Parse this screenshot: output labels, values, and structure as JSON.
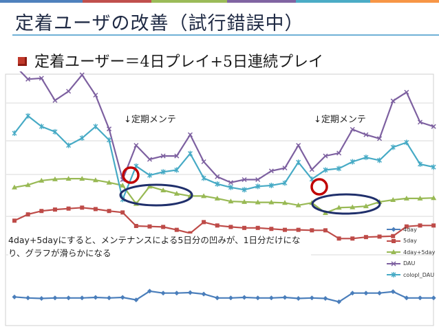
{
  "title": "定着ユーザの改善（試行錯誤中）",
  "subtitle": "定着ユーザー＝4日プレイ+5日連続プレイ",
  "annotations": {
    "maintenance_1": "↓定期メンテ",
    "maintenance_2": "↓定期メンテ"
  },
  "note": "4day+5dayにすると、メンテナンスによる5日分の凹みが、1日分だけになり、グラフが滑らかになる",
  "colors": {
    "accent_bar": [
      "#4f81bd",
      "#c0504d",
      "#9bbb59",
      "#8064a2",
      "#4bacc6",
      "#f79646"
    ],
    "rule": "#6fb0d6",
    "circle_red": "#c00000",
    "ellipse_navy": "#1f2f6b"
  },
  "chart_data": {
    "type": "line",
    "grid": true,
    "legend_position": "right",
    "x_count": 32,
    "series": [
      {
        "name": "4day",
        "color": "#4a7ebb",
        "marker": "diamond",
        "values": [
          1.8,
          1.6,
          1.5,
          1.6,
          1.6,
          1.6,
          1.7,
          1.6,
          1.7,
          1.2,
          3.0,
          2.6,
          2.6,
          2.7,
          2.4,
          1.6,
          1.6,
          1.7,
          1.6,
          1.6,
          1.7,
          1.5,
          1.6,
          1.5,
          0.8,
          2.6,
          2.6,
          2.6,
          2.9,
          1.6,
          1.6,
          1.6
        ]
      },
      {
        "name": "5day",
        "color": "#be4b48",
        "marker": "square",
        "values": [
          17.6,
          18.9,
          19.6,
          19.9,
          20.1,
          20.3,
          20.0,
          19.6,
          19.3,
          16.5,
          16.4,
          16.3,
          15.7,
          15.0,
          17.3,
          16.6,
          16.3,
          16.1,
          16.1,
          15.9,
          15.7,
          15.7,
          15.6,
          15.6,
          13.9,
          13.9,
          14.2,
          14.3,
          14.4,
          16.4,
          16.6,
          16.6
        ]
      },
      {
        "name": "4day+5day",
        "color": "#98b954",
        "marker": "triangle",
        "values": [
          24.5,
          25.0,
          25.9,
          26.2,
          26.3,
          26.3,
          26.0,
          25.5,
          24.9,
          21.1,
          24.7,
          23.9,
          23.2,
          22.7,
          22.7,
          22.2,
          21.6,
          21.5,
          21.4,
          21.4,
          21.3,
          20.8,
          21.3,
          19.2,
          20.3,
          20.4,
          20.6,
          21.5,
          21.9,
          22.2,
          22.2,
          22.3
        ]
      },
      {
        "name": "DAU",
        "color": "#7d60a0",
        "marker": "x",
        "values": [
          49.8,
          46.9,
          47.1,
          42.5,
          44.4,
          47.8,
          43.6,
          36.6,
          26.1,
          33.2,
          30.3,
          31.0,
          31.0,
          35.4,
          29.8,
          26.7,
          25.5,
          26.1,
          26.1,
          27.9,
          28.5,
          33.2,
          28.2,
          31.0,
          31.6,
          36.5,
          35.4,
          34.6,
          42.4,
          44.2,
          38.0,
          37.1
        ]
      },
      {
        "name": "colopl_DAU",
        "color": "#46aac5",
        "marker": "star",
        "values": [
          35.7,
          39.3,
          37.1,
          36.0,
          33.2,
          34.7,
          37.1,
          34.3,
          22.0,
          28.9,
          27.0,
          27.7,
          28.1,
          31.5,
          26.4,
          25.2,
          24.5,
          24.0,
          24.7,
          24.9,
          25.4,
          29.7,
          26.2,
          28.1,
          28.4,
          29.8,
          30.7,
          30.1,
          32.8,
          33.8,
          29.3,
          28.7
        ]
      }
    ]
  }
}
